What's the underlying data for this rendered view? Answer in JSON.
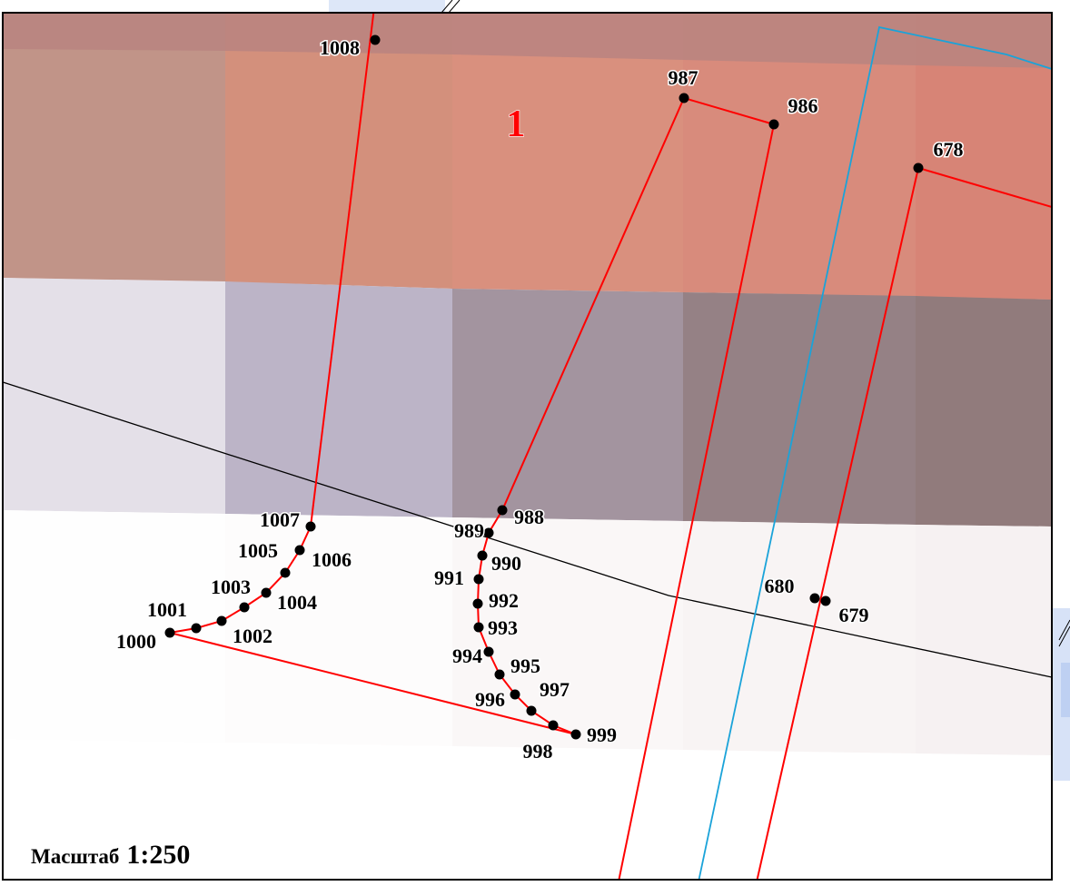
{
  "map": {
    "parcel_label": "1",
    "scale_label": "Масштаб",
    "scale_value": "1:250",
    "colors": {
      "boundary": "#ff0000",
      "parcel_number": "#ff0000",
      "waterline": "#1aa3d9",
      "road_line": "#000000",
      "point": "#000000",
      "frame": "#000000"
    },
    "points": [
      "1008",
      "987",
      "986",
      "678",
      "1007",
      "1006",
      "1005",
      "1004",
      "1003",
      "1002",
      "1001",
      "1000",
      "988",
      "989",
      "990",
      "991",
      "992",
      "993",
      "994",
      "995",
      "996",
      "997",
      "998",
      "999",
      "680",
      "679"
    ]
  }
}
